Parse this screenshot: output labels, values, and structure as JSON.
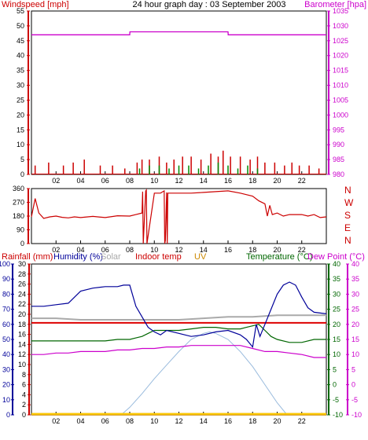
{
  "header": {
    "left_label": "Windspeed [mph]",
    "title": "24 hour graph day : 03 September 2003",
    "right_label": "Barometer [hpa]"
  },
  "colors": {
    "wind": "#cc0000",
    "gust": "#008800",
    "barometer": "#cc00cc",
    "direction": "#cc0000",
    "rain": "#cc0000",
    "humidity": "#000099",
    "solar": "#aaaaaa",
    "indoor": "#dd0000",
    "uv": "#cc8800",
    "temperature": "#006600",
    "dewpoint": "#cc00cc",
    "solar_curve": "#99bbdd"
  },
  "chart_data": [
    {
      "type": "line",
      "id": "wind_baro",
      "xlim": [
        0,
        24
      ],
      "x_ticks": [
        "02",
        "04",
        "06",
        "08",
        "10",
        "12",
        "14",
        "16",
        "18",
        "20",
        "22"
      ],
      "left_axis": {
        "label": "Windspeed [mph]",
        "ylim": [
          0,
          55
        ],
        "ticks": [
          0,
          5,
          10,
          15,
          20,
          25,
          30,
          35,
          40,
          45,
          50,
          55
        ]
      },
      "right_axis": {
        "label": "Barometer [hpa]",
        "ylim": [
          980,
          1035
        ],
        "ticks": [
          980,
          985,
          990,
          995,
          1000,
          1005,
          1010,
          1015,
          1020,
          1025,
          1030,
          1035
        ]
      },
      "series": [
        {
          "name": "Windspeed",
          "axis": "left",
          "style": "spikes",
          "x": [
            0.3,
            1.4,
            2.6,
            3.4,
            4.3,
            5.6,
            6.6,
            7.6,
            8.6,
            9.0,
            9.6,
            10.4,
            11.0,
            11.6,
            12.3,
            13.0,
            13.8,
            14.6,
            15.2,
            15.6,
            16.2,
            17.0,
            17.8,
            18.4,
            19.0,
            19.8,
            20.6,
            21.2,
            21.8,
            22.6,
            23.4
          ],
          "values": [
            3,
            4,
            3,
            4,
            5,
            3,
            3,
            2,
            4,
            5,
            5,
            6,
            4,
            5,
            6,
            6,
            5,
            7,
            6,
            8,
            6,
            6,
            5,
            6,
            4,
            4,
            3,
            4,
            3,
            3,
            2
          ]
        },
        {
          "name": "Gust",
          "axis": "left",
          "style": "spikes",
          "x": [
            8.8,
            9.6,
            10.4,
            11.2,
            12.0,
            12.8,
            13.6,
            14.4,
            15.2,
            16.0,
            16.8,
            17.6,
            18.4
          ],
          "values": [
            2,
            3,
            3,
            2,
            3,
            3,
            2,
            3,
            4,
            3,
            2,
            3,
            2
          ]
        },
        {
          "name": "Barometer",
          "axis": "right",
          "x": [
            0,
            8,
            8.01,
            16,
            16.01,
            24
          ],
          "values": [
            1027,
            1027,
            1028,
            1028,
            1027,
            1027
          ]
        }
      ]
    },
    {
      "type": "line",
      "id": "direction",
      "xlim": [
        0,
        24
      ],
      "x_ticks": [
        "02",
        "04",
        "06",
        "08",
        "10",
        "12",
        "14",
        "16",
        "18",
        "20",
        "22"
      ],
      "left_axis": {
        "ylim": [
          0,
          360
        ],
        "ticks": [
          0,
          90,
          180,
          270,
          360
        ]
      },
      "right_labels": [
        "N",
        "W",
        "S",
        "E",
        "N"
      ],
      "series": [
        {
          "name": "Wind direction",
          "x": [
            0,
            0.3,
            0.6,
            1.0,
            1.5,
            2.0,
            2.5,
            3.0,
            3.5,
            4.0,
            5.0,
            6.0,
            7.0,
            8.0,
            8.5,
            9.0,
            9.05,
            9.1,
            9.3,
            9.35,
            9.4,
            10.0,
            10.5,
            10.8,
            10.85,
            10.9,
            11.0,
            11.05,
            11.1,
            12.0,
            13.0,
            14.0,
            15.0,
            16.0,
            17.0,
            18.0,
            18.5,
            19.0,
            19.2,
            19.4,
            19.6,
            20.0,
            20.5,
            21.0,
            22.0,
            22.5,
            23.0,
            23.5,
            24.0
          ],
          "values": [
            175,
            295,
            200,
            165,
            175,
            180,
            172,
            168,
            175,
            170,
            178,
            170,
            182,
            180,
            190,
            200,
            340,
            0,
            345,
            350,
            0,
            330,
            330,
            345,
            0,
            20,
            335,
            0,
            330,
            330,
            330,
            335,
            340,
            345,
            330,
            310,
            280,
            260,
            180,
            250,
            190,
            200,
            180,
            190,
            190,
            180,
            190,
            170,
            175
          ]
        }
      ]
    },
    {
      "type": "line",
      "id": "climate",
      "xlim": [
        0,
        24
      ],
      "x_ticks": [
        "02",
        "04",
        "06",
        "08",
        "10",
        "12",
        "14",
        "16",
        "18",
        "20",
        "22"
      ],
      "legend": [
        "Rainfall (mm)",
        "Humidity (%)",
        "Solar",
        "Indoor temp",
        "UV",
        "Temperature (°C)",
        "Dew Point (°C)"
      ],
      "humidity_axis": {
        "ylim": [
          0,
          100
        ],
        "ticks": [
          0,
          10,
          20,
          30,
          40,
          50,
          60,
          70,
          80,
          90,
          100
        ]
      },
      "rain_axis": {
        "ylim": [
          0,
          30
        ],
        "ticks": [
          0,
          2,
          4,
          6,
          8,
          10,
          12,
          14,
          16,
          18,
          20,
          22,
          24,
          26,
          28,
          30
        ]
      },
      "temp_axis": {
        "ylim": [
          -10,
          40
        ],
        "ticks": [
          -10,
          -5,
          0,
          5,
          10,
          15,
          20,
          25,
          30,
          35,
          40
        ]
      },
      "series": [
        {
          "name": "Humidity (%)",
          "axis": "humidity",
          "x": [
            0,
            1,
            2,
            3,
            4,
            5,
            6,
            7,
            7.5,
            8,
            8.5,
            9,
            9.5,
            10,
            10.5,
            11,
            11.5,
            12,
            13,
            14,
            15,
            16,
            17,
            17.5,
            18,
            18.3,
            18.6,
            19,
            19.5,
            20,
            20.5,
            21,
            21.5,
            22,
            22.5,
            23,
            24
          ],
          "values": [
            72,
            72,
            73,
            74,
            82,
            84,
            85,
            85,
            86,
            86,
            72,
            65,
            58,
            55,
            53,
            56,
            55,
            54,
            52,
            53,
            55,
            56,
            53,
            50,
            45,
            60,
            52,
            60,
            70,
            80,
            86,
            88,
            86,
            78,
            71,
            68,
            67
          ]
        },
        {
          "name": "Solar",
          "axis": "humidity",
          "x": [
            0,
            2,
            4,
            6,
            8,
            10,
            12,
            14,
            16,
            18,
            20,
            22,
            24
          ],
          "values": [
            64,
            64,
            63,
            63,
            63,
            63,
            63,
            64,
            65,
            65,
            66,
            66,
            66
          ]
        },
        {
          "name": "Indoor temp",
          "axis": "temp",
          "x": [
            0,
            24
          ],
          "values": [
            20.5,
            20.5
          ]
        },
        {
          "name": "UV",
          "axis": "temp",
          "x": [
            0,
            24
          ],
          "values": [
            -9.8,
            -9.8
          ]
        },
        {
          "name": "Temperature (°C)",
          "axis": "temp",
          "x": [
            0,
            1,
            2,
            3,
            4,
            5,
            6,
            7,
            8,
            8.5,
            9,
            9.5,
            10,
            11,
            12,
            13,
            14,
            15,
            16,
            17,
            17.5,
            18,
            18.5,
            19,
            19.5,
            20,
            21,
            22,
            23,
            24
          ],
          "values": [
            14.5,
            14.5,
            14.5,
            14.5,
            14.5,
            14.5,
            14.5,
            15,
            15,
            15.5,
            16,
            17,
            18,
            18,
            18,
            18.5,
            19,
            19,
            18.5,
            18.5,
            19,
            19.5,
            20,
            18,
            16,
            15,
            14,
            14,
            15,
            15
          ]
        },
        {
          "name": "Dew Point (°C)",
          "axis": "temp",
          "x": [
            0,
            1,
            2,
            3,
            4,
            5,
            6,
            7,
            8,
            9,
            10,
            11,
            12,
            13,
            14,
            15,
            16,
            17,
            18,
            19,
            20,
            21,
            22,
            23,
            24
          ],
          "values": [
            10,
            10,
            10.5,
            10.5,
            11,
            11,
            11,
            11.5,
            11.5,
            12,
            12,
            12.5,
            12.5,
            13,
            13,
            13,
            13,
            13,
            12,
            11,
            11,
            10.5,
            10,
            9,
            9
          ]
        },
        {
          "name": "Solar radiation",
          "axis": "humidity",
          "x": [
            0,
            7.3,
            8,
            9,
            10,
            11,
            12,
            13,
            14,
            14.5,
            15,
            16,
            17,
            18,
            19,
            20,
            20.8,
            21,
            24
          ],
          "values": [
            0,
            0,
            5,
            14,
            24,
            33,
            42,
            50,
            54,
            55,
            54,
            50,
            42,
            32,
            20,
            8,
            0,
            0,
            0
          ]
        },
        {
          "name": "Rainfall (mm)",
          "axis": "rain",
          "x": [
            0,
            24
          ],
          "values": [
            0.2,
            0.2
          ]
        }
      ]
    }
  ]
}
